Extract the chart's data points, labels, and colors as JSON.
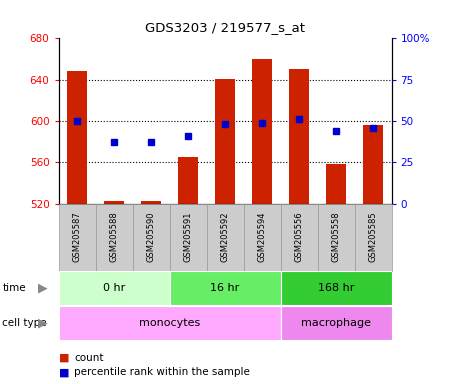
{
  "title": "GDS3203 / 219577_s_at",
  "samples": [
    "GSM205587",
    "GSM205588",
    "GSM205590",
    "GSM205591",
    "GSM205592",
    "GSM205594",
    "GSM205556",
    "GSM205558",
    "GSM205585"
  ],
  "counts": [
    648,
    522,
    522,
    565,
    641,
    660,
    650,
    558,
    596
  ],
  "percentile_ranks": [
    50,
    37,
    37,
    41,
    48,
    49,
    51,
    44,
    46
  ],
  "count_base": 520,
  "count_ylim": [
    520,
    680
  ],
  "count_yticks": [
    520,
    560,
    600,
    640,
    680
  ],
  "pct_ylim": [
    0,
    100
  ],
  "pct_yticks": [
    0,
    25,
    50,
    75,
    100
  ],
  "time_groups": [
    {
      "label": "0 hr",
      "start": 0,
      "end": 3,
      "color": "#ccffcc"
    },
    {
      "label": "16 hr",
      "start": 3,
      "end": 6,
      "color": "#66ee66"
    },
    {
      "label": "168 hr",
      "start": 6,
      "end": 9,
      "color": "#33cc33"
    }
  ],
  "cell_type_groups": [
    {
      "label": "monocytes",
      "start": 0,
      "end": 6,
      "color": "#ffaaff"
    },
    {
      "label": "macrophage",
      "start": 6,
      "end": 9,
      "color": "#ee88ee"
    }
  ],
  "bar_color": "#cc2200",
  "dot_color": "#0000cc",
  "sample_bg_color": "#cccccc",
  "sample_edge_color": "#999999",
  "legend_count_color": "#cc2200",
  "legend_pct_color": "#0000cc",
  "fig_bg_color": "#ffffff"
}
